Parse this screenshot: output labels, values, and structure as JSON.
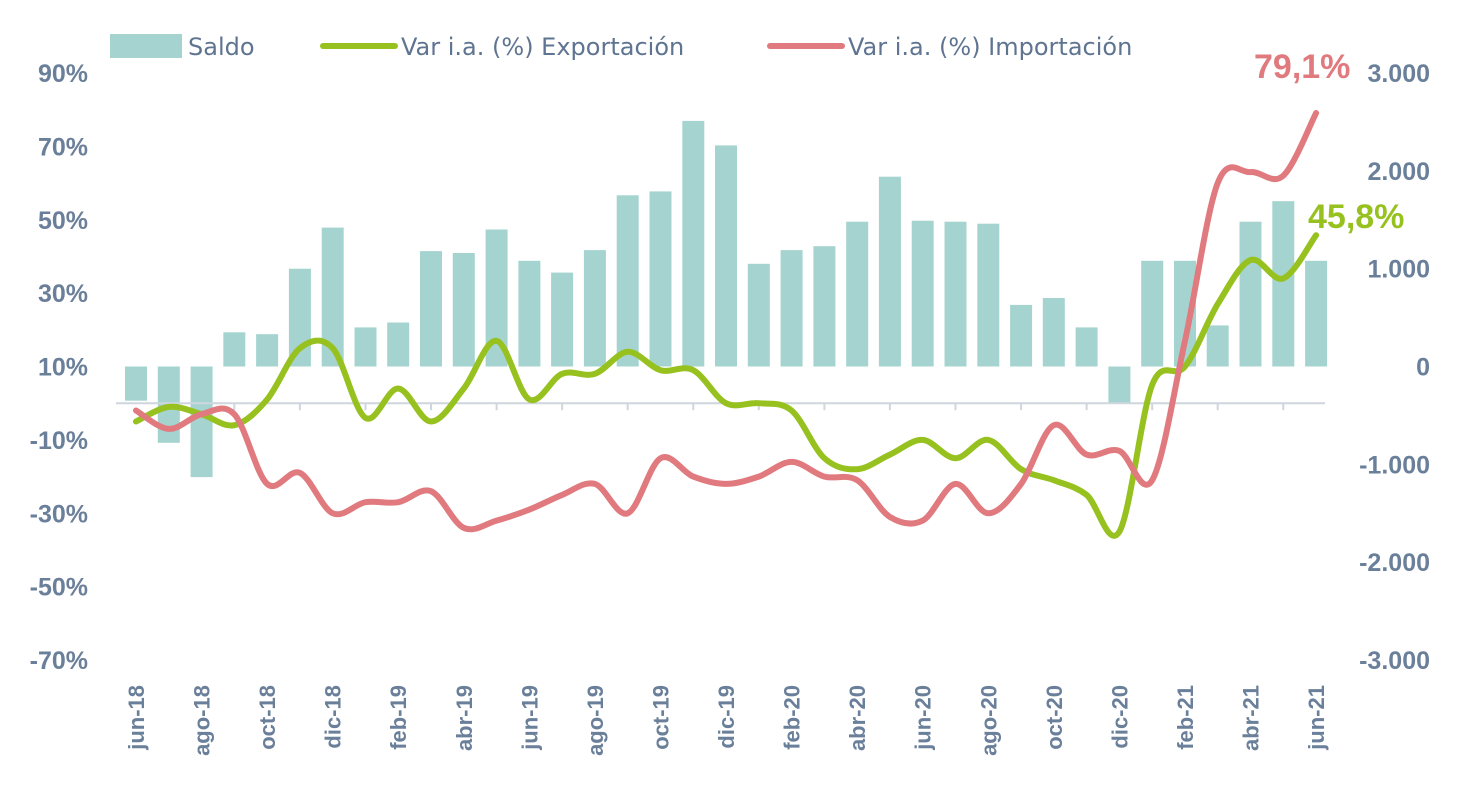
{
  "colors": {
    "saldo": "#a5d4d0",
    "export": "#97c11f",
    "import": "#e07a7e",
    "axis_text": "#6a7f99",
    "axis_line": "#cfd6de"
  },
  "chart_data": {
    "type": "bar",
    "categories": [
      "jun-18",
      "jul-18",
      "ago-18",
      "sep-18",
      "oct-18",
      "nov-18",
      "dic-18",
      "ene-19",
      "feb-19",
      "mar-19",
      "abr-19",
      "may-19",
      "jun-19",
      "jul-19",
      "ago-19",
      "sep-19",
      "oct-19",
      "nov-19",
      "dic-19",
      "ene-20",
      "feb-20",
      "mar-20",
      "abr-20",
      "may-20",
      "jun-20",
      "jul-20",
      "ago-20",
      "sep-20",
      "oct-20",
      "nov-20",
      "dic-20",
      "ene-21",
      "feb-21",
      "mar-21",
      "abr-21",
      "may-21",
      "jun-21"
    ],
    "x_tick_labels": [
      "jun-18",
      "ago-18",
      "oct-18",
      "dic-18",
      "feb-19",
      "abr-19",
      "jun-19",
      "ago-19",
      "oct-19",
      "dic-19",
      "feb-20",
      "abr-20",
      "jun-20",
      "ago-20",
      "oct-20",
      "dic-20",
      "feb-21",
      "abr-21",
      "jun-21"
    ],
    "series": [
      {
        "name": "Saldo",
        "kind": "bar",
        "axis": "right",
        "values": [
          -350,
          -780,
          -1130,
          350,
          330,
          1000,
          1420,
          400,
          450,
          1180,
          1160,
          1400,
          1080,
          960,
          1190,
          1750,
          1790,
          2510,
          2260,
          1050,
          1190,
          1230,
          1480,
          1940,
          1490,
          1480,
          1460,
          630,
          700,
          400,
          -370,
          1080,
          1080,
          420,
          1480,
          1690,
          1080
        ]
      },
      {
        "name": "Var i.a. (%) Exportación",
        "kind": "line",
        "axis": "left",
        "values": [
          -5,
          -1,
          -3,
          -6,
          1,
          15,
          15,
          -4,
          4,
          -5,
          4,
          17,
          1,
          8,
          8,
          14,
          9,
          9,
          0,
          0,
          -2,
          -15,
          -18,
          -14,
          -10,
          -15,
          -10,
          -18,
          -21,
          -25,
          -35,
          5,
          10,
          27,
          39,
          34,
          45.8
        ]
      },
      {
        "name": "Var i.a. (%) Importación",
        "kind": "line",
        "axis": "left",
        "values": [
          -2,
          -7,
          -3,
          -3,
          -22,
          -19,
          -30,
          -27,
          -27,
          -24,
          -34,
          -32,
          -29,
          -25,
          -22,
          -30,
          -15,
          -20,
          -22,
          -20,
          -16,
          -20,
          -21,
          -31,
          -32,
          -22,
          -30,
          -22,
          -6,
          -14,
          -13,
          -21,
          17,
          60,
          63,
          62,
          79.1
        ]
      }
    ],
    "end_labels": {
      "export": "45,8%",
      "import": "79,1%"
    },
    "y_left": {
      "ticks": [
        "90%",
        "70%",
        "50%",
        "30%",
        "10%",
        "-10%",
        "-30%",
        "-50%",
        "-70%"
      ],
      "lim": [
        -70,
        90
      ],
      "zero_line": 0
    },
    "y_right": {
      "ticks": [
        "3.000",
        "2.000",
        "1.000",
        "0",
        "-1.000",
        "-2.000",
        "-3.000"
      ],
      "lim": [
        -3000,
        3000
      ]
    },
    "legend": {
      "placement": "top",
      "entries": [
        "Saldo",
        "Var i.a. (%) Exportación",
        "Var i.a. (%) Importación"
      ]
    },
    "grid": false
  }
}
